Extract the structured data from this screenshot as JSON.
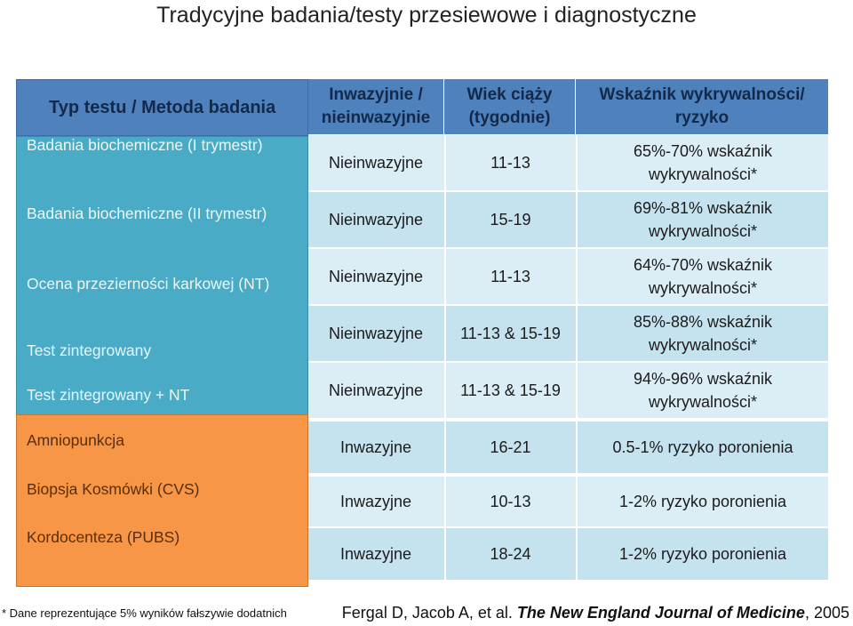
{
  "title": "Tradycyjne badania/testy przesiewowe i diagnostyczne",
  "left_header": "Typ testu / Metoda badania",
  "tests": [
    "Badania biochemiczne  (I trymestr)",
    "Badania biochemiczne (II trymestr)",
    "Ocena przezierności karkowej (NT)",
    "Test zintegrowany",
    "Test zintegrowany + NT",
    "Amniopunkcja",
    "Biopsja Kosmówki (CVS)",
    "Kordocenteza (PUBS)"
  ],
  "columns": [
    "Inwazyjnie / nieinwazyjnie",
    "Wiek ciąży (tygodnie)",
    "Wskaźnik wykrywalności/ ryzyko"
  ],
  "rows": [
    {
      "type": "Nieinwazyjne",
      "weeks": "11-13",
      "rate": "65%-70% wskaźnik wykrywalności*"
    },
    {
      "type": "Nieinwazyjne",
      "weeks": "15-19",
      "rate": "69%-81% wskaźnik wykrywalności*"
    },
    {
      "type": "Nieinwazyjne",
      "weeks": "11-13",
      "rate": "64%-70% wskaźnik wykrywalności*"
    },
    {
      "type": "Nieinwazyjne",
      "weeks": "11-13 & 15-19",
      "rate": "85%-88% wskaźnik wykrywalności*"
    },
    {
      "type": "Nieinwazyjne",
      "weeks": "11-13 & 15-19",
      "rate": "94%-96% wskaźnik wykrywalności*"
    },
    {
      "type": "Inwazyjne",
      "weeks": "16-21",
      "rate": "0.5-1%  ryzyko poronienia"
    },
    {
      "type": "Inwazyjne",
      "weeks": "10-13",
      "rate": "1-2% ryzyko poronienia"
    },
    {
      "type": "Inwazyjne",
      "weeks": "18-24",
      "rate": "1-2% ryzyko poronienia"
    }
  ],
  "footnote": "* Dane reprezentujące 5% wyników fałszywie dodatnich",
  "citation_authors": "Fergal D, Jacob A, et al.",
  "citation_journal": "The New England Journal of Medicine",
  "citation_year": ", 2005",
  "colors": {
    "header_blue": "#4f81bd",
    "teal": "#4aabc6",
    "orange": "#f79646",
    "row_light": "#dbeef6",
    "row_alt": "#c5e3ef"
  }
}
